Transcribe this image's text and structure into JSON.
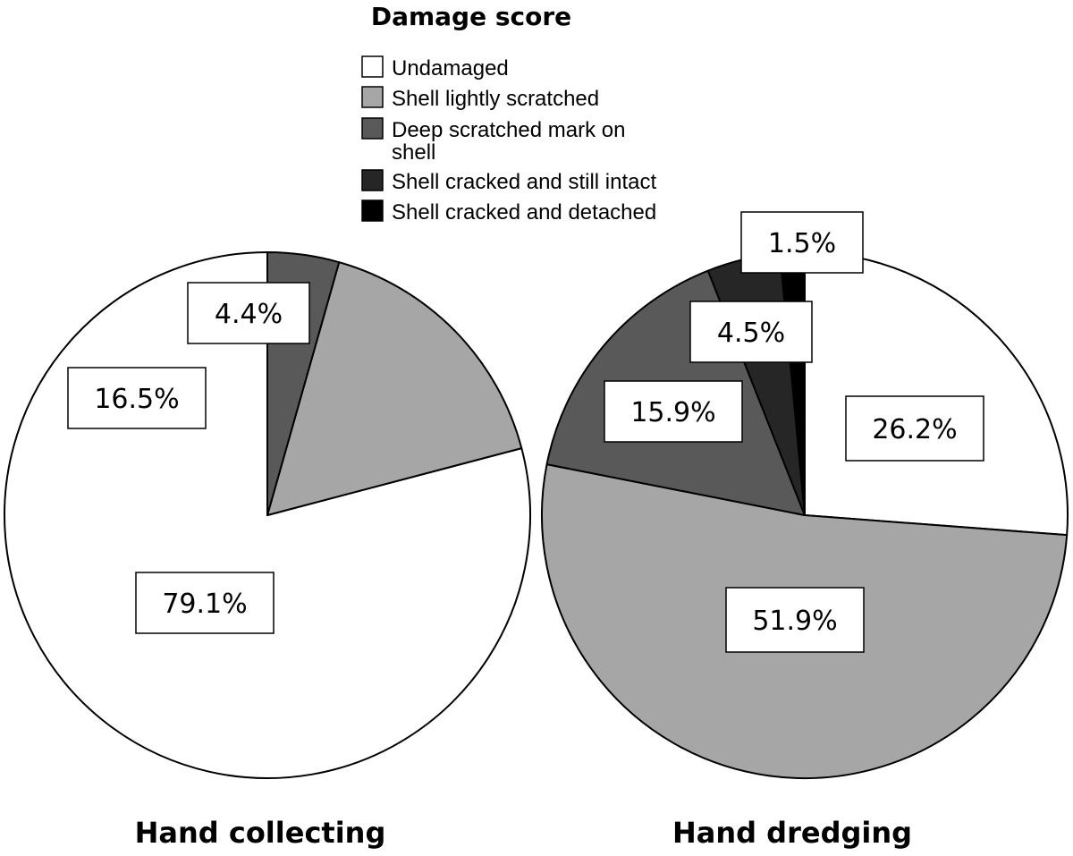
{
  "legend": {
    "title": "Damage score",
    "items": [
      {
        "label_lines": [
          "Undamaged"
        ],
        "color": "#ffffff"
      },
      {
        "label_lines": [
          "Shell lightly scratched"
        ],
        "color": "#a6a6a6"
      },
      {
        "label_lines": [
          "Deep scratched mark on",
          "shell"
        ],
        "color": "#595959"
      },
      {
        "label_lines": [
          "Shell cracked and still intact"
        ],
        "color": "#262626"
      },
      {
        "label_lines": [
          "Shell cracked and detached"
        ],
        "color": "#000000"
      }
    ]
  },
  "chart_data": [
    {
      "type": "pie",
      "title": "Hand collecting",
      "categories": [
        "Undamaged",
        "Shell lightly scratched",
        "Deep scratched mark on shell",
        "Shell cracked and still intact",
        "Shell cracked and detached"
      ],
      "values": [
        79.1,
        16.5,
        4.4,
        0,
        0
      ],
      "labels": [
        "79.1%",
        "16.5%",
        "4.4%",
        "",
        ""
      ]
    },
    {
      "type": "pie",
      "title": "Hand dredging",
      "categories": [
        "Undamaged",
        "Shell lightly scratched",
        "Deep scratched mark on shell",
        "Shell cracked and still intact",
        "Shell cracked and detached"
      ],
      "values": [
        26.2,
        51.9,
        15.9,
        4.5,
        1.5
      ],
      "labels": [
        "26.2%",
        "51.9%",
        "15.9%",
        "4.5%",
        "1.5%"
      ]
    }
  ]
}
